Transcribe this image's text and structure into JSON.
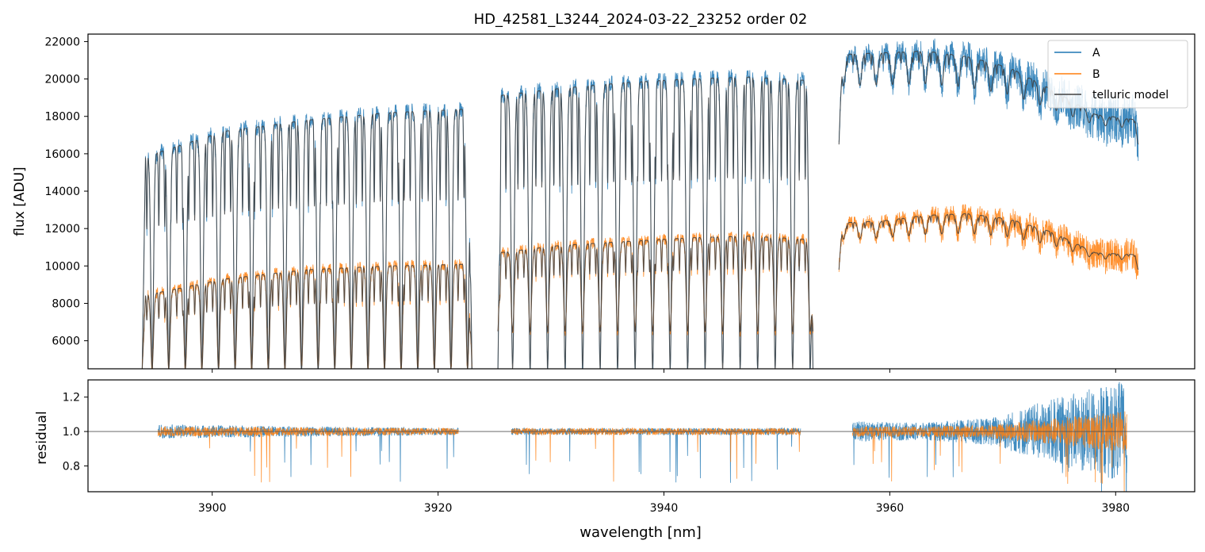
{
  "chart_data": [
    {
      "type": "line",
      "title": "HD_42581_L3244_2024-03-22_23252  order 02",
      "xlabel": "",
      "ylabel": "flux [ADU]",
      "xlim": [
        3889,
        3987
      ],
      "ylim": [
        4500,
        22400
      ],
      "yticks": [
        6000,
        8000,
        10000,
        12000,
        14000,
        16000,
        18000,
        20000,
        22000
      ],
      "xticks": [
        3900,
        3920,
        3940,
        3960,
        3980
      ],
      "legend_position": "top-right",
      "series": [
        {
          "name": "A",
          "color": "#1f77b4",
          "segments": [
            {
              "x_start": 3893.8,
              "x_end": 3923.0,
              "continuum": [
                15800,
                17200,
                17800,
                18200,
                18400
              ],
              "line_depth_to": 4500
            },
            {
              "x_start": 3925.3,
              "x_end": 3953.2,
              "continuum": [
                19100,
                19500,
                19800,
                20000,
                20100,
                19900
              ],
              "line_depth_to": 4500
            },
            {
              "x_start": 3955.5,
              "x_end": 3982.0,
              "continuum": [
                21300,
                21400,
                21500,
                21200,
                20600,
                19400,
                18100,
                17800
              ],
              "line_depth_to": 16500
            }
          ]
        },
        {
          "name": "B",
          "color": "#ff7f0e",
          "segments": [
            {
              "x_start": 3893.8,
              "x_end": 3923.0,
              "continuum": [
                8400,
                9300,
                9800,
                10000,
                10100
              ],
              "line_depth_to": 4500
            },
            {
              "x_start": 3925.3,
              "x_end": 3953.2,
              "continuum": [
                10700,
                11100,
                11300,
                11500,
                11600,
                11400
              ],
              "line_depth_to": 6500
            },
            {
              "x_start": 3955.5,
              "x_end": 3982.0,
              "continuum": [
                12300,
                12400,
                12700,
                12800,
                12500,
                11800,
                10700,
                10600
              ],
              "line_depth_to": 9800
            }
          ]
        },
        {
          "name": "telluric model",
          "color": "#404040"
        }
      ]
    },
    {
      "type": "line",
      "title": "",
      "xlabel": "wavelength [nm]",
      "ylabel": "residual",
      "xlim": [
        3889,
        3987
      ],
      "ylim": [
        0.65,
        1.3
      ],
      "yticks": [
        0.8,
        1.0,
        1.2
      ],
      "xticks": [
        3900,
        3920,
        3940,
        3960,
        3980
      ],
      "tick_labels": [
        "3900",
        "3920",
        "3940",
        "3960",
        "3980"
      ],
      "reference_line": 1.0,
      "series": [
        {
          "name": "A",
          "color": "#1f77b4",
          "segments": [
            {
              "x_start": 3895.2,
              "x_end": 3921.8,
              "noise": [
                0.04,
                0.03,
                0.02
              ]
            },
            {
              "x_start": 3926.5,
              "x_end": 3952.1,
              "noise": [
                0.02,
                0.02,
                0.02
              ]
            },
            {
              "x_start": 3956.7,
              "x_end": 3981.0,
              "noise": [
                0.06,
                0.05,
                0.08,
                0.2,
                0.3
              ]
            }
          ]
        },
        {
          "name": "B",
          "color": "#ff7f0e",
          "segments": [
            {
              "x_start": 3895.2,
              "x_end": 3921.8,
              "noise": [
                0.03,
                0.025,
                0.02
              ]
            },
            {
              "x_start": 3926.5,
              "x_end": 3952.1,
              "noise": [
                0.02,
                0.02,
                0.02
              ]
            },
            {
              "x_start": 3956.7,
              "x_end": 3981.0,
              "noise": [
                0.03,
                0.03,
                0.04,
                0.08,
                0.12
              ]
            }
          ]
        }
      ]
    }
  ]
}
